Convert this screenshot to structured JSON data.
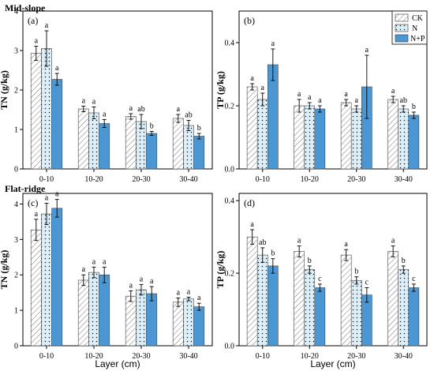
{
  "figure": {
    "region_labels": [
      "Mid-slope",
      "Flat-ridge"
    ],
    "xlabel": "Layer (cm)",
    "legend": {
      "items": [
        "CK",
        "N",
        "N+P"
      ],
      "placement": "top-right"
    },
    "series_styles": [
      {
        "name": "CK",
        "fill": "hatch",
        "color": "#ffffff"
      },
      {
        "name": "N",
        "fill": "dots",
        "color": "#dceef8"
      },
      {
        "name": "N+P",
        "fill": "solid",
        "color": "#4b97d4"
      }
    ]
  },
  "chart_data": [
    {
      "type": "bar",
      "panel": "(a)",
      "region": "Mid-slope",
      "ylabel": "TN (g/kg)",
      "categories": [
        "0-10",
        "10-20",
        "20-30",
        "30-40"
      ],
      "ylim": [
        0,
        4
      ],
      "yticks": [
        "0",
        "1",
        "2",
        "3",
        "4"
      ],
      "series": [
        {
          "name": "CK",
          "values": [
            2.93,
            1.52,
            1.33,
            1.28
          ],
          "errors": [
            0.18,
            0.07,
            0.07,
            0.1
          ],
          "letters": [
            "a",
            "a",
            "a",
            "a"
          ]
        },
        {
          "name": "N",
          "values": [
            3.05,
            1.42,
            1.2,
            1.1
          ],
          "errors": [
            0.45,
            0.15,
            0.18,
            0.13
          ],
          "letters": [
            "a",
            "a",
            "ab",
            "ab"
          ]
        },
        {
          "name": "N+P",
          "values": [
            2.27,
            1.15,
            0.9,
            0.83
          ],
          "errors": [
            0.15,
            0.1,
            0.05,
            0.07
          ],
          "letters": [
            "a",
            "a",
            "b",
            "b"
          ]
        }
      ]
    },
    {
      "type": "bar",
      "panel": "(b)",
      "region": "Mid-slope",
      "ylabel": "TP (g/kg)",
      "categories": [
        "0-10",
        "10-20",
        "20-30",
        "30-40"
      ],
      "ylim": [
        0,
        0.5
      ],
      "yticks": [
        "0.0",
        "0.2",
        "0.4"
      ],
      "series": [
        {
          "name": "CK",
          "values": [
            0.26,
            0.2,
            0.21,
            0.22
          ],
          "errors": [
            0.01,
            0.02,
            0.01,
            0.01
          ],
          "letters": [
            "a",
            "a",
            "a",
            "a"
          ]
        },
        {
          "name": "N",
          "values": [
            0.22,
            0.2,
            0.19,
            0.19
          ],
          "errors": [
            0.02,
            0.01,
            0.01,
            0.01
          ],
          "letters": [
            "a",
            "a",
            "a",
            "ab"
          ]
        },
        {
          "name": "N+P",
          "values": [
            0.33,
            0.19,
            0.26,
            0.17
          ],
          "errors": [
            0.05,
            0.01,
            0.1,
            0.01
          ],
          "letters": [
            "a",
            "a",
            "a",
            "b"
          ]
        }
      ]
    },
    {
      "type": "bar",
      "panel": "(c)",
      "region": "Flat-ridge",
      "ylabel": "TN (g/kg)",
      "categories": [
        "0-10",
        "10-20",
        "20-30",
        "30-40"
      ],
      "ylim": [
        0,
        4.3
      ],
      "yticks": [
        "0",
        "1",
        "2",
        "3",
        "4"
      ],
      "series": [
        {
          "name": "CK",
          "values": [
            3.27,
            1.85,
            1.4,
            1.23
          ],
          "errors": [
            0.3,
            0.15,
            0.15,
            0.12
          ],
          "letters": [
            "a",
            "a",
            "a",
            "a"
          ]
        },
        {
          "name": "N",
          "values": [
            3.72,
            2.07,
            1.58,
            1.32
          ],
          "errors": [
            0.3,
            0.15,
            0.15,
            0.05
          ],
          "letters": [
            "a",
            "a",
            "a",
            "a"
          ]
        },
        {
          "name": "N+P",
          "values": [
            3.88,
            2.0,
            1.47,
            1.1
          ],
          "errors": [
            0.25,
            0.22,
            0.2,
            0.1
          ],
          "letters": [
            "a",
            "a",
            "a",
            "a"
          ]
        }
      ]
    },
    {
      "type": "bar",
      "panel": "(d)",
      "region": "Flat-ridge",
      "ylabel": "TP (g/kg)",
      "categories": [
        "0-10",
        "10-20",
        "20-30",
        "30-40"
      ],
      "ylim": [
        0,
        0.42
      ],
      "yticks": [
        "0.0",
        "0.2",
        "0.4"
      ],
      "series": [
        {
          "name": "CK",
          "values": [
            0.3,
            0.26,
            0.25,
            0.26
          ],
          "errors": [
            0.02,
            0.015,
            0.015,
            0.015
          ],
          "letters": [
            "a",
            "a",
            "a",
            "a"
          ]
        },
        {
          "name": "N",
          "values": [
            0.25,
            0.21,
            0.18,
            0.21
          ],
          "errors": [
            0.02,
            0.01,
            0.01,
            0.01
          ],
          "letters": [
            "ab",
            "b",
            "b",
            "b"
          ]
        },
        {
          "name": "N+P",
          "values": [
            0.22,
            0.16,
            0.14,
            0.16
          ],
          "errors": [
            0.02,
            0.01,
            0.02,
            0.01
          ],
          "letters": [
            "b",
            "c",
            "c",
            "c"
          ]
        }
      ]
    }
  ]
}
